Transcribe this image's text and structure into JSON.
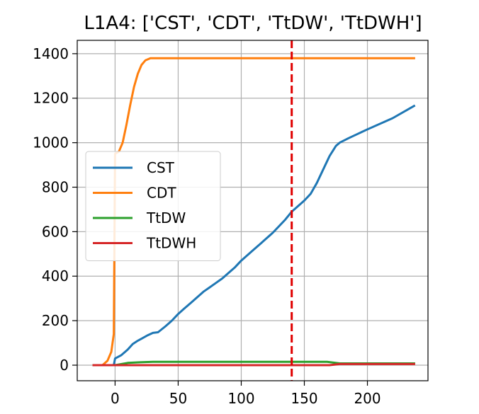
{
  "chart_data": {
    "type": "line",
    "title": "L1A4: ['CST', 'CDT', 'TtDW', 'TtDWH']",
    "xlabel": "",
    "ylabel": "",
    "xlim": [
      -30,
      248
    ],
    "ylim": [
      -70,
      1460
    ],
    "xticks": [
      0,
      50,
      100,
      150,
      200
    ],
    "yticks": [
      0,
      200,
      400,
      600,
      800,
      1000,
      1200,
      1400
    ],
    "grid": true,
    "legend_position": "center-left",
    "vline": {
      "x": 140,
      "color": "#e00000",
      "style": "dashed"
    },
    "series": [
      {
        "name": "CST",
        "color": "#1f77b4",
        "points": [
          [
            -17,
            0
          ],
          [
            -1,
            0
          ],
          [
            0,
            30
          ],
          [
            5,
            45
          ],
          [
            10,
            70
          ],
          [
            14,
            95
          ],
          [
            18,
            110
          ],
          [
            22,
            122
          ],
          [
            26,
            135
          ],
          [
            30,
            145
          ],
          [
            34,
            148
          ],
          [
            40,
            175
          ],
          [
            45,
            200
          ],
          [
            50,
            230
          ],
          [
            55,
            255
          ],
          [
            60,
            280
          ],
          [
            65,
            305
          ],
          [
            70,
            330
          ],
          [
            75,
            350
          ],
          [
            80,
            370
          ],
          [
            85,
            390
          ],
          [
            90,
            415
          ],
          [
            95,
            440
          ],
          [
            100,
            470
          ],
          [
            105,
            495
          ],
          [
            110,
            520
          ],
          [
            115,
            545
          ],
          [
            120,
            570
          ],
          [
            125,
            595
          ],
          [
            130,
            625
          ],
          [
            135,
            655
          ],
          [
            140,
            690
          ],
          [
            145,
            715
          ],
          [
            150,
            740
          ],
          [
            155,
            770
          ],
          [
            160,
            820
          ],
          [
            165,
            880
          ],
          [
            170,
            940
          ],
          [
            175,
            985
          ],
          [
            178,
            1000
          ],
          [
            185,
            1020
          ],
          [
            200,
            1060
          ],
          [
            220,
            1110
          ],
          [
            237,
            1165
          ]
        ]
      },
      {
        "name": "CDT",
        "color": "#ff7f0e",
        "points": [
          [
            -17,
            0
          ],
          [
            -10,
            0
          ],
          [
            -6,
            20
          ],
          [
            -3,
            60
          ],
          [
            -1,
            140
          ],
          [
            0,
            950
          ],
          [
            3,
            960
          ],
          [
            6,
            1000
          ],
          [
            9,
            1080
          ],
          [
            12,
            1170
          ],
          [
            15,
            1250
          ],
          [
            18,
            1310
          ],
          [
            21,
            1350
          ],
          [
            24,
            1370
          ],
          [
            28,
            1380
          ],
          [
            35,
            1380
          ],
          [
            237,
            1380
          ]
        ]
      },
      {
        "name": "TtDW",
        "color": "#2ca02c",
        "points": [
          [
            -17,
            0
          ],
          [
            0,
            0
          ],
          [
            10,
            10
          ],
          [
            20,
            13
          ],
          [
            30,
            15
          ],
          [
            50,
            15
          ],
          [
            100,
            15
          ],
          [
            150,
            15
          ],
          [
            168,
            15
          ],
          [
            178,
            8
          ],
          [
            237,
            8
          ]
        ]
      },
      {
        "name": "TtDWH",
        "color": "#d62728",
        "points": [
          [
            -17,
            0
          ],
          [
            170,
            0
          ],
          [
            178,
            5
          ],
          [
            237,
            5
          ]
        ]
      }
    ]
  }
}
